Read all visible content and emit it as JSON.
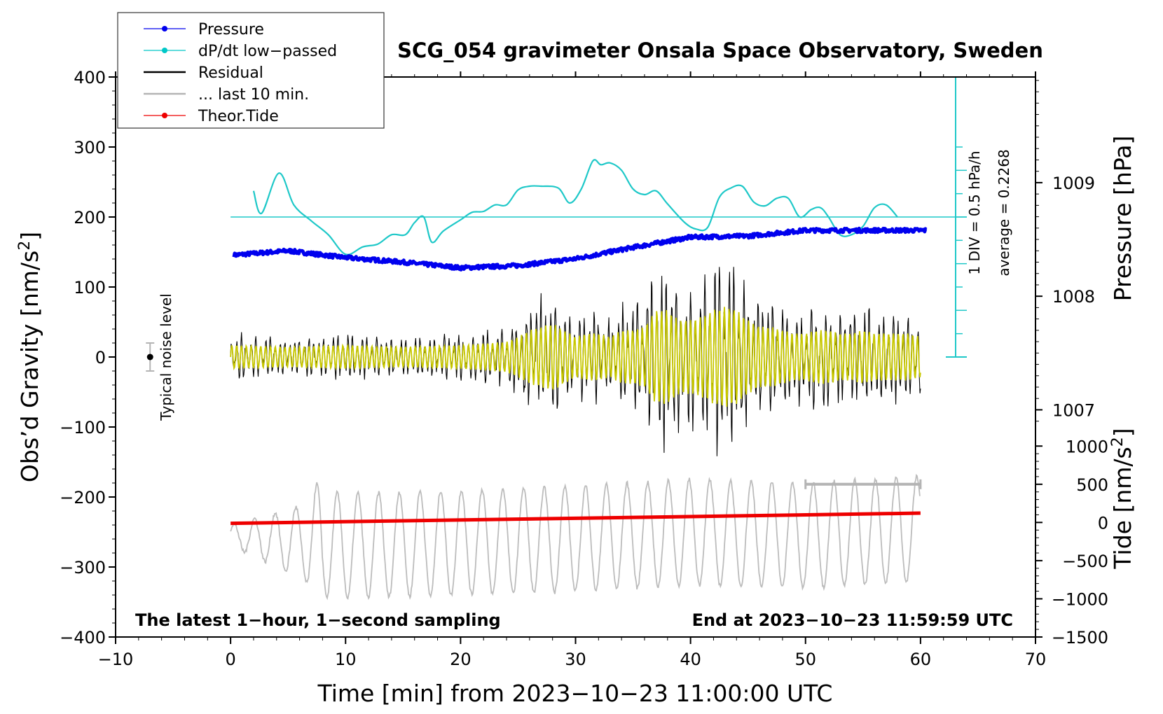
{
  "chart_data": {
    "type": "line",
    "title": "SCG_054 gravimeter Onsala Space Observatory, Sweden",
    "xlabel": "Time [min] from 2023−10−23 11:00:00 UTC",
    "ylabel_left": "Obs’d Gravity [nm/s",
    "ylabel_left_sup": "2",
    "ylabel_left_end": "]",
    "ylabel_pressure": "Pressure [hPa]",
    "ylabel_tide": "Tide [nm/s",
    "ylabel_tide_sup": "2",
    "ylabel_tide_end": "]",
    "xlim": [
      -10,
      70
    ],
    "ylim": [
      -400,
      400
    ],
    "x_ticks": [
      -10,
      0,
      10,
      20,
      30,
      40,
      50,
      60,
      70
    ],
    "x_tick_labels": [
      "−10",
      "0",
      "10",
      "20",
      "30",
      "40",
      "50",
      "60",
      "70"
    ],
    "y_ticks": [
      -400,
      -300,
      -200,
      -100,
      0,
      100,
      200,
      300,
      400
    ],
    "y_tick_labels": [
      "−400",
      "−300",
      "−200",
      "−100",
      "0",
      "100",
      "200",
      "300",
      "400"
    ],
    "pressure_ticks": [
      1007,
      1008,
      1009
    ],
    "pressure_tick_labels": [
      "1007",
      "1008",
      "1009"
    ],
    "pressure_ylim": [
      1005,
      1009.93
    ],
    "tide_ticks": [
      -1500,
      -1000,
      -500,
      0,
      500,
      1000
    ],
    "tide_tick_labels": [
      "−1500",
      "−1000",
      "−500",
      "0",
      "500",
      "1000"
    ],
    "tide_ylim": [
      -1500,
      5833
    ],
    "legend": [
      {
        "label": "Pressure",
        "color": "#0000ee",
        "marker": "dot"
      },
      {
        "label": "dP/dt low−passed",
        "color": "#00c8c8",
        "marker": "dot"
      },
      {
        "label": "Residual",
        "color": "#000000",
        "marker": "none"
      },
      {
        "label": "... last 10 min.",
        "color": "#b4b4b4",
        "marker": "none"
      },
      {
        "label": "Theor.Tide",
        "color": "#ee0000",
        "marker": "dot"
      }
    ],
    "colors": {
      "pressure": "#0000ee",
      "dpdt": "#1ec8c8",
      "residual": "#000000",
      "residual_filtered": "#c8c800",
      "last10": "#bcbcbc",
      "tide": "#ee0000",
      "noise": "#b4b4b4"
    },
    "series": [
      {
        "name": "Pressure",
        "unit": "hPa",
        "x": [
          0,
          5,
          10,
          15,
          20,
          25,
          30,
          35,
          40,
          45,
          50,
          55,
          60
        ],
        "values": [
          1008.36,
          1008.4,
          1008.34,
          1008.3,
          1008.25,
          1008.27,
          1008.33,
          1008.43,
          1008.52,
          1008.53,
          1008.58,
          1008.58,
          1008.58
        ]
      },
      {
        "name": "dP/dt low-passed",
        "unit": "hPa/h",
        "average": 0.2268,
        "x": [
          2,
          2.7,
          4.2,
          5.5,
          7,
          8.5,
          10,
          11.5,
          12.8,
          14,
          15.2,
          16,
          16.8,
          17.5,
          18.5,
          20,
          21,
          22,
          23,
          24,
          25,
          26,
          27,
          28.5,
          29.5,
          30.5,
          31.5,
          32.2,
          33,
          34,
          35,
          36,
          37,
          38,
          39.5,
          40.5,
          41.5,
          42.5,
          43.5,
          44.5,
          45.5,
          46.5,
          47.5,
          48.5,
          49.5,
          50.5,
          51.3,
          52,
          53,
          54,
          55,
          56,
          57,
          58
        ],
        "values": [
          0.28,
          0.04,
          0.47,
          0.13,
          -0.04,
          -0.19,
          -0.4,
          -0.32,
          -0.29,
          -0.19,
          -0.19,
          -0.06,
          0.0,
          -0.27,
          -0.15,
          -0.03,
          0.05,
          0.06,
          0.13,
          0.13,
          0.29,
          0.33,
          0.33,
          0.31,
          0.15,
          0.3,
          0.6,
          0.56,
          0.58,
          0.5,
          0.3,
          0.24,
          0.28,
          0.14,
          -0.06,
          -0.13,
          -0.11,
          0.21,
          0.31,
          0.33,
          0.16,
          0.12,
          0.2,
          0.2,
          0.0,
          0.08,
          0.1,
          0.0,
          -0.19,
          -0.19,
          -0.1,
          0.1,
          0.13,
          0.0
        ]
      },
      {
        "name": "Residual",
        "unit": "nm/s2",
        "x": [
          0,
          5,
          10,
          15,
          20,
          24,
          25,
          26,
          27,
          28,
          29,
          30,
          31,
          32,
          33,
          34,
          35,
          36,
          37,
          38,
          39,
          40,
          41,
          42,
          43,
          44,
          45,
          46,
          47,
          48,
          49,
          50,
          51,
          52,
          53,
          54,
          55,
          56,
          57,
          58,
          59,
          60
        ],
        "envelope": [
          35,
          30,
          35,
          30,
          35,
          45,
          60,
          80,
          90,
          100,
          80,
          60,
          70,
          70,
          60,
          80,
          80,
          90,
          140,
          140,
          110,
          110,
          120,
          140,
          150,
          140,
          110,
          90,
          90,
          80,
          70,
          70,
          80,
          80,
          70,
          70,
          80,
          70,
          70,
          70,
          70,
          60
        ]
      },
      {
        "name": "... last 10 min.",
        "unit": "nm/s2",
        "x": [
          0,
          10,
          20,
          30,
          40,
          50,
          60
        ],
        "values": [
          -255,
          -270,
          -265,
          -260,
          -250,
          -255,
          -245
        ]
      },
      {
        "name": "Theor.Tide",
        "unit": "nm/s2",
        "x": [
          0,
          60
        ],
        "values": [
          -12,
          122
        ]
      }
    ],
    "noise_level": {
      "label": "Typical noise level",
      "x": -7,
      "y": 0,
      "err": 20
    },
    "pressure_scale": {
      "label1": "1 DIV = 0.5 hPa/h",
      "label2": "average = 0.2268"
    },
    "window_bar": {
      "x0": 50,
      "x1": 60
    },
    "annotations": {
      "left": "The latest 1−hour, 1−second sampling",
      "right": "End at 2023−10−23 11:59:59 UTC"
    }
  }
}
